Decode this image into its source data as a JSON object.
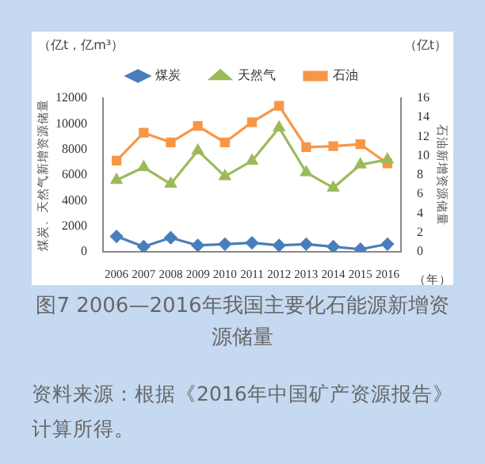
{
  "chart_data": {
    "type": "line",
    "title": "图7 2006—2016年我国主要化石能源新增资源储量",
    "xlabel": "（年）",
    "ylabel": "煤炭、天然气新增资源储量",
    "y2label": "石油新增资源储量",
    "annotations": [
      "（亿t，亿m³）",
      "（亿t）",
      "资料来源：根据《2016年中国矿产资源报告》计算所得。"
    ],
    "categories": [
      "2006",
      "2007",
      "2008",
      "2009",
      "2010",
      "2011",
      "2012",
      "2013",
      "2014",
      "2015",
      "2016"
    ],
    "series": [
      {
        "name": "煤炭",
        "color": "#4a7ebb",
        "marker": "diamond",
        "values": [
          1200,
          400,
          1100,
          500,
          600,
          700,
          500,
          600,
          400,
          200,
          600
        ]
      },
      {
        "name": "天然气",
        "color": "#9bbb59",
        "marker": "triangle",
        "values": [
          5600,
          6600,
          5300,
          7900,
          5900,
          7100,
          9700,
          6200,
          5000,
          6800,
          7200
        ]
      },
      {
        "name": "石油",
        "color": "#f79646",
        "marker": "square",
        "axis": "y2",
        "values": [
          9.5,
          12.4,
          11.4,
          13.1,
          11.4,
          13.5,
          15.2,
          10.9,
          11.0,
          11.2,
          9.2
        ]
      }
    ],
    "ylim": [
      0,
      12000
    ],
    "yticks": [
      0,
      2000,
      4000,
      6000,
      8000,
      10000,
      12000
    ],
    "y2lim": [
      0,
      16
    ],
    "y2ticks": [
      0,
      2,
      4,
      6,
      8,
      10,
      12,
      14,
      16
    ],
    "grid": false,
    "legend": "top"
  }
}
